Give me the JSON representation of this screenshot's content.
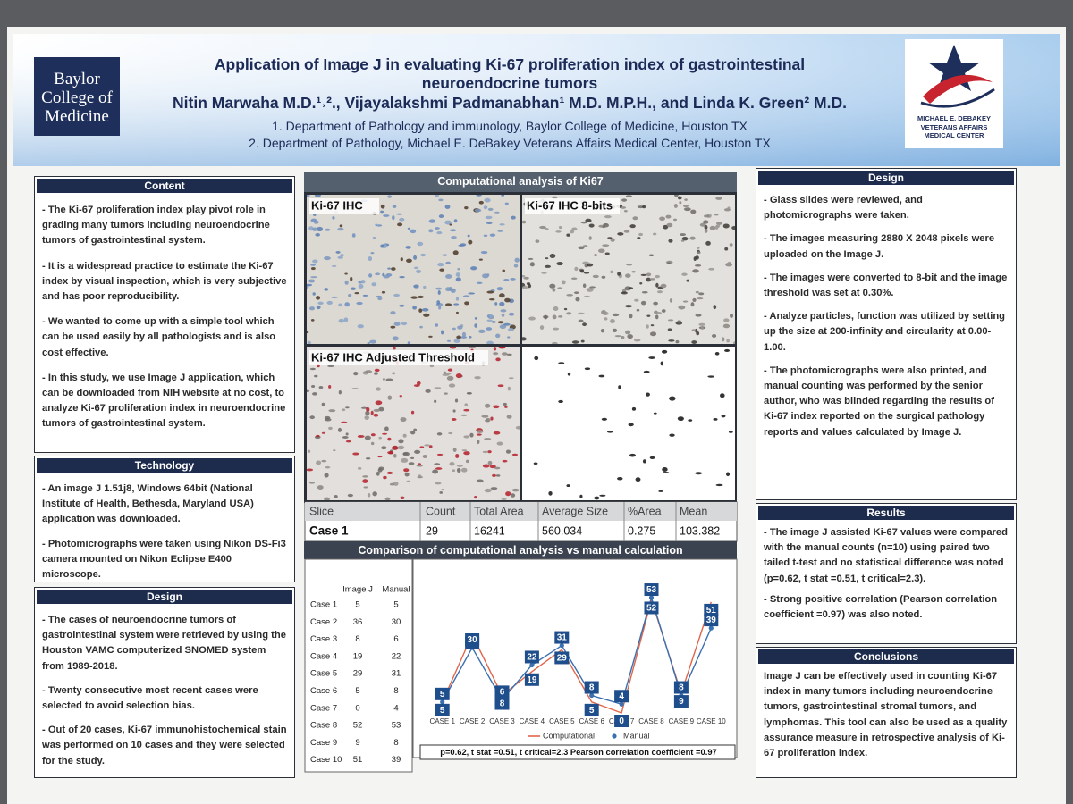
{
  "header": {
    "logo_left": [
      "Baylor",
      "College of",
      "Medicine"
    ],
    "title": [
      "Application of Image J in evaluating Ki-67 proliferation index of gastrointestinal",
      "neuroendocrine tumors"
    ],
    "authors": "Nitin Marwaha M.D.¹˒²., Vijayalakshmi Padmanabhan¹ M.D. M.P.H., and Linda K. Green² M.D.",
    "affiliations": [
      "1. Department of Pathology and immunology, Baylor College of Medicine, Houston TX",
      "2. Department of Pathology, Michael E. DeBakey Veterans Affairs Medical Center, Houston TX"
    ],
    "logo_right": [
      "MICHAEL E. DEBAKEY",
      "VETERANS AFFAIRS",
      "MEDICAL CENTER"
    ]
  },
  "left_column": [
    {
      "heading": "Content",
      "paragraphs": [
        "- The Ki-67 proliferation index play pivot role in grading many tumors including neuroendocrine tumors of gastrointestinal system.",
        "- It is a widespread practice to estimate the Ki-67 index by visual inspection, which is very subjective and has poor reproducibility.",
        "- We wanted to come up with a simple tool which can be used easily by all pathologists and is also cost effective.",
        "- In this study, we use Image J application, which can be downloaded from NIH website at no cost, to analyze Ki-67 proliferation index in neuroendocrine tumors of gastrointestinal system."
      ]
    },
    {
      "heading": "Technology",
      "paragraphs": [
        "- An image J 1.51j8, Windows 64bit (National Institute of Health, Bethesda, Maryland USA) application was downloaded.",
        "- Photomicrographs were taken using Nikon DS-Fi3 camera mounted on Nikon Eclipse E400 microscope."
      ]
    },
    {
      "heading": "Design",
      "paragraphs": [
        "- The cases of neuroendocrine tumors of gastrointestinal system were retrieved by using the Houston VAMC computerized SNOMED system from 1989-2018.",
        "- Twenty consecutive most recent cases were selected to avoid selection bias.",
        "- Out of 20 cases, Ki-67 immunohistochemical stain was performed on 10 cases and they were selected for the study."
      ]
    }
  ],
  "middle_column": {
    "figure_title": "Computational analysis of Ki67",
    "panel_labels": [
      "Ki-67 IHC",
      "Ki-67 IHC 8-bits",
      "Ki-67 IHC Adjusted Threshold"
    ],
    "results_table": {
      "headers": [
        "Slice",
        "Count",
        "Total Area",
        "Average Size",
        "%Area",
        "Mean"
      ],
      "rows": [
        [
          "Case 1",
          "29",
          "16241",
          "560.034",
          "0.275",
          "103.382"
        ]
      ]
    },
    "comparison_title": "Comparison of computational analysis vs manual calculation",
    "comparison_table": {
      "headers": [
        "Image J",
        "Manual"
      ],
      "row_labels": [
        "Case 1",
        "Case 2",
        "Case 3",
        "Case 4",
        "Case 5",
        "Case 6",
        "Case 7",
        "Case 8",
        "Case 9",
        "Case 10"
      ]
    },
    "caption": "p=0.62, t stat =0.51, t critical=2.3 Pearson correlation coefficient =0.97"
  },
  "chart_data": {
    "type": "line",
    "categories": [
      "CASE 1",
      "CASE 2",
      "CASE 3",
      "CASE 4",
      "CASE 5",
      "CASE 6",
      "CASE 7",
      "CASE 8",
      "CASE 9",
      "CASE 10"
    ],
    "series": [
      {
        "name": "Computational",
        "color": "#e0664a",
        "values": [
          5,
          36,
          8,
          19,
          29,
          5,
          0,
          52,
          9,
          51
        ]
      },
      {
        "name": "Manual",
        "color": "#3a6fb0",
        "values": [
          5,
          30,
          6,
          22,
          31,
          8,
          4,
          53,
          8,
          39
        ]
      }
    ],
    "ylim": [
      0,
      60
    ],
    "legend": "bottom"
  },
  "right_column": [
    {
      "heading": "Design",
      "paragraphs": [
        "- Glass slides were reviewed, and photomicrographs were taken.",
        "- The images measuring 2880 X 2048 pixels were uploaded on the Image J.",
        "- The images were converted to 8-bit and the image threshold was set at 0.30%.",
        "- Analyze particles, function was utilized by setting up the size at 200-infinity and circularity at 0.00-1.00.",
        "- The photomicrographs were also printed, and manual counting was performed by the senior author, who was blinded regarding the results of Ki-67 index reported on the surgical pathology reports and values calculated by Image J."
      ]
    },
    {
      "heading": "Results",
      "paragraphs": [
        "- The image J assisted Ki-67 values were compared with the manual counts (n=10) using paired two tailed t-test and no statistical difference was noted (p=0.62, t stat =0.51, t critical=2.3).",
        "- Strong positive correlation (Pearson correlation coefficient =0.97) was also noted."
      ]
    },
    {
      "heading": "Conclusions",
      "paragraphs": [
        "Image J can be effectively used in counting Ki-67 index in many tumors including neuroendocrine tumors, gastrointestinal stromal tumors, and lymphomas. This tool can also be used as a quality assurance measure in retrospective analysis of Ki-67 proliferation index."
      ]
    }
  ]
}
